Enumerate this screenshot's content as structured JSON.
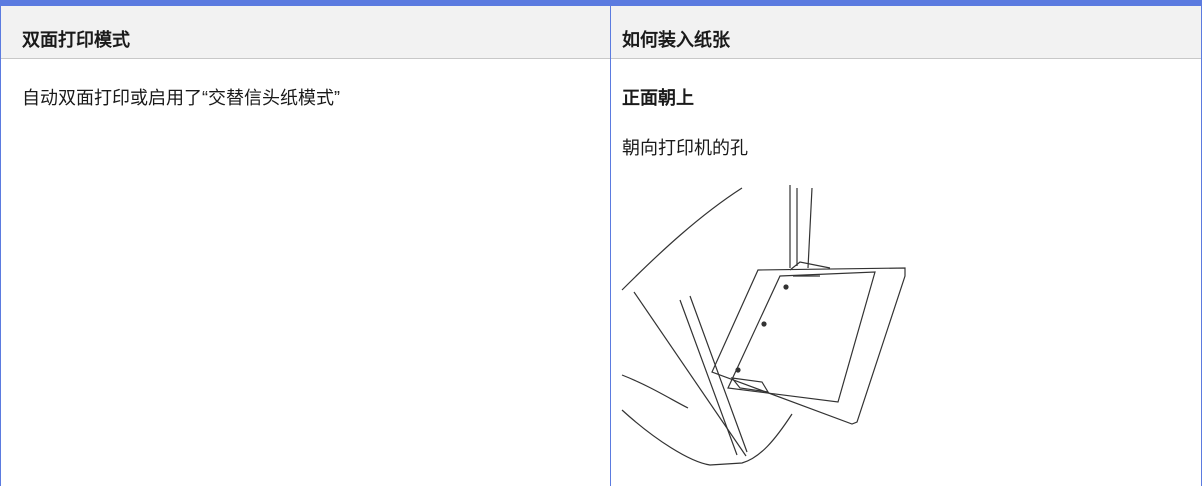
{
  "table": {
    "headers": [
      "双面打印模式",
      "如何装入纸张"
    ],
    "rows": [
      [
        "自动双面打印或启用了“交替信头纸模式”",
        {
          "heading": "正面朝上",
          "text": "朝向打印机的孔"
        }
      ]
    ]
  }
}
